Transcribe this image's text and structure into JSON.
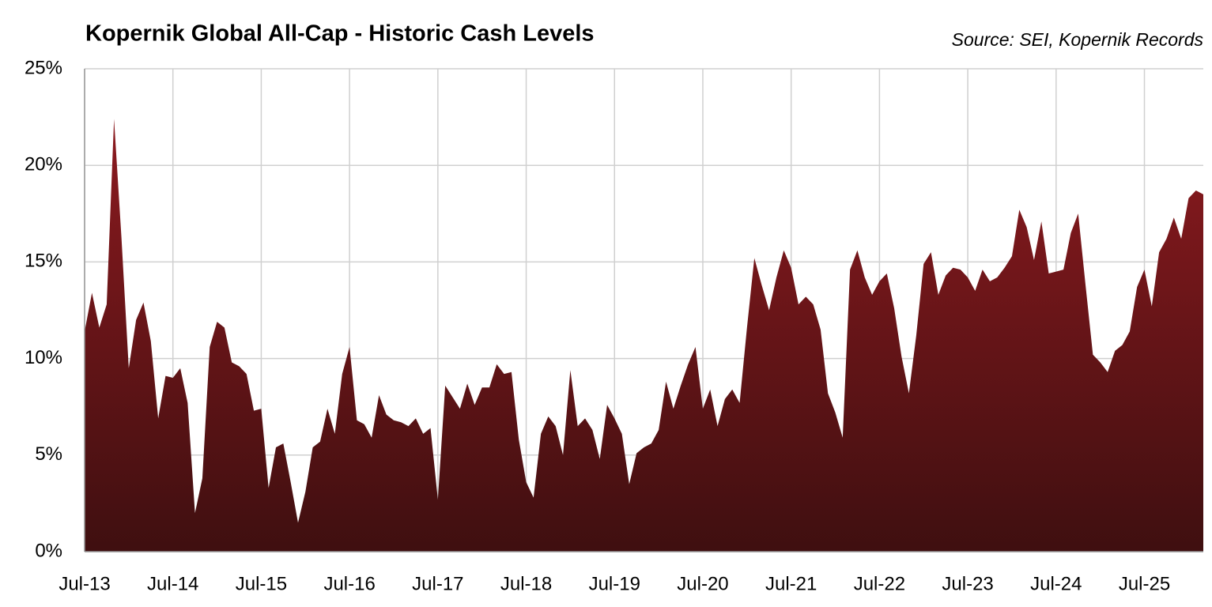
{
  "chart_data": {
    "type": "area",
    "title": "Kopernik Global All-Cap - Historic Cash Levels",
    "source": "Source: SEI, Kopernik Records",
    "categories": [
      "Jul-13",
      null,
      null,
      null,
      null,
      null,
      null,
      null,
      null,
      null,
      null,
      null,
      "Jul-14",
      null,
      null,
      null,
      null,
      null,
      null,
      null,
      null,
      null,
      null,
      null,
      "Jul-15",
      null,
      null,
      null,
      null,
      null,
      null,
      null,
      null,
      null,
      null,
      null,
      "Jul-16",
      null,
      null,
      null,
      null,
      null,
      null,
      null,
      null,
      null,
      null,
      null,
      "Jul-17",
      null,
      null,
      null,
      null,
      null,
      null,
      null,
      null,
      null,
      null,
      null,
      "Jul-18",
      null,
      null,
      null,
      null,
      null,
      null,
      null,
      null,
      null,
      null,
      null,
      "Jul-19",
      null,
      null,
      null,
      null,
      null,
      null,
      null,
      null,
      null,
      null,
      null,
      "Jul-20",
      null,
      null,
      null,
      null,
      null,
      null,
      null,
      null,
      null,
      null,
      null,
      "Jul-21",
      null,
      null,
      null,
      null,
      null,
      null,
      null,
      null,
      null,
      null,
      null,
      "Jul-22",
      null,
      null,
      null,
      null,
      null,
      null,
      null,
      null,
      null,
      null,
      null,
      "Jul-23",
      null,
      null,
      null,
      null,
      null,
      null,
      null,
      null,
      null,
      null,
      null,
      "Jul-24",
      null,
      null,
      null,
      null,
      null,
      null,
      null,
      null,
      null,
      null,
      null,
      "Jul-25",
      null,
      null,
      null,
      null,
      null,
      null,
      null,
      null
    ],
    "values": [
      11.4,
      13.4,
      11.6,
      12.8,
      22.4,
      16.3,
      9.5,
      12.0,
      12.9,
      10.9,
      6.9,
      9.1,
      9.0,
      9.5,
      7.7,
      2.0,
      3.8,
      10.6,
      11.9,
      11.6,
      9.8,
      9.6,
      9.2,
      7.3,
      7.4,
      3.3,
      5.4,
      5.6,
      3.6,
      1.5,
      3.1,
      5.4,
      5.7,
      7.4,
      6.1,
      9.2,
      10.6,
      6.8,
      6.6,
      5.9,
      8.1,
      7.1,
      6.8,
      6.7,
      6.5,
      6.9,
      6.1,
      6.4,
      2.7,
      8.6,
      8.0,
      7.4,
      8.7,
      7.6,
      8.5,
      8.5,
      9.7,
      9.2,
      9.3,
      5.8,
      3.6,
      2.8,
      6.1,
      7.0,
      6.5,
      5.0,
      9.4,
      6.5,
      6.9,
      6.3,
      4.8,
      7.6,
      6.9,
      6.1,
      3.5,
      5.1,
      5.4,
      5.6,
      6.3,
      8.8,
      7.4,
      8.6,
      9.7,
      10.6,
      7.4,
      8.4,
      6.5,
      7.9,
      8.4,
      7.7,
      11.6,
      15.2,
      13.8,
      12.5,
      14.2,
      15.6,
      14.7,
      12.8,
      13.2,
      12.8,
      11.5,
      8.2,
      7.2,
      5.9,
      14.6,
      15.6,
      14.2,
      13.3,
      14.0,
      14.4,
      12.6,
      10.1,
      8.2,
      11.2,
      14.9,
      15.5,
      13.3,
      14.3,
      14.7,
      14.6,
      14.2,
      13.5,
      14.6,
      14.0,
      14.2,
      14.7,
      15.3,
      17.7,
      16.8,
      15.1,
      17.1,
      14.4,
      14.5,
      14.6,
      16.5,
      17.5,
      13.8,
      10.2,
      9.8,
      9.3,
      10.4,
      10.7,
      11.4,
      13.7,
      14.6,
      12.7,
      15.5,
      16.2,
      17.3,
      16.2,
      18.3,
      18.7,
      18.5
    ],
    "color_top": "#8c1a1f",
    "color_bottom": "#3f0f10",
    "ylim": [
      0,
      25
    ],
    "yticks": [
      {
        "value": 0,
        "label": "0%"
      },
      {
        "value": 5,
        "label": "5%"
      },
      {
        "value": 10,
        "label": "10%"
      },
      {
        "value": 15,
        "label": "15%"
      },
      {
        "value": 20,
        "label": "20%"
      },
      {
        "value": 25,
        "label": "25%"
      }
    ],
    "grid": true
  }
}
